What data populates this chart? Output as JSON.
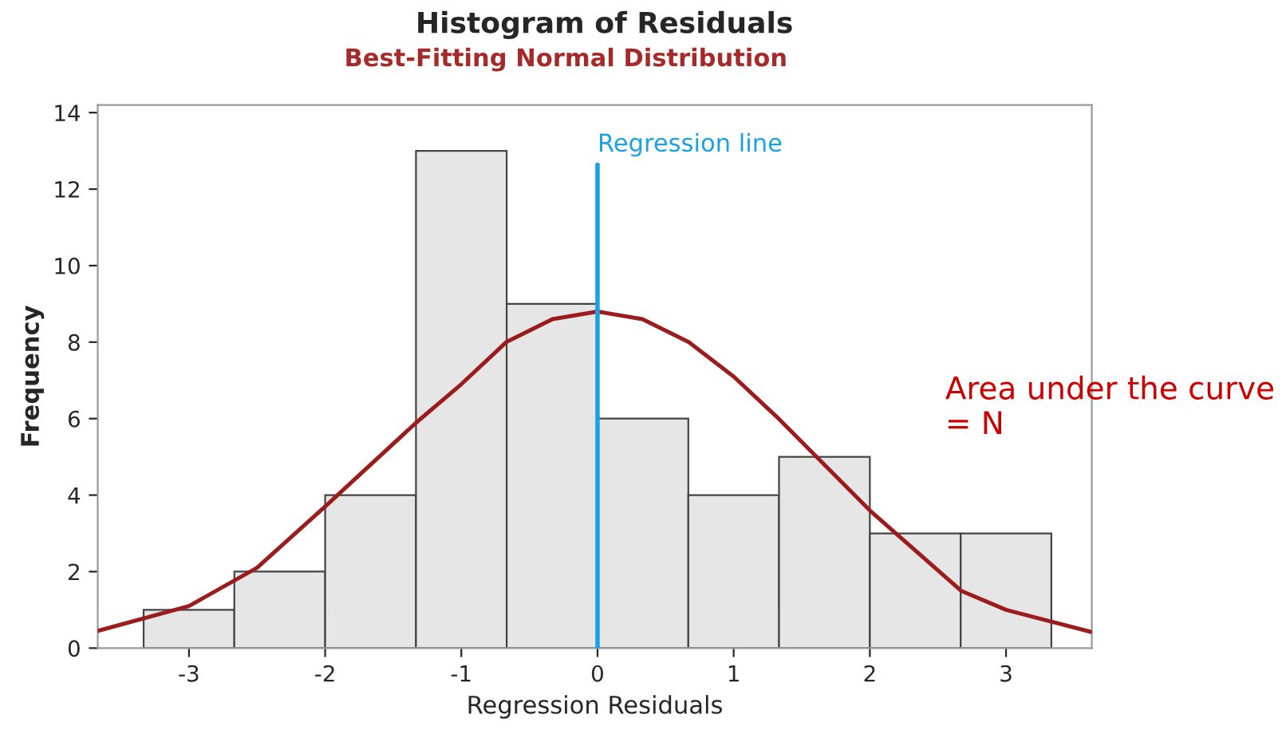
{
  "chart_data": [
    {
      "type": "histogram",
      "title": "Histogram of Residuals",
      "subtitle": "Best-Fitting Normal Distribution",
      "xlabel": "Regression Residuals",
      "ylabel": "Frequency",
      "bins": [
        -3.333,
        -2.667,
        -2,
        -1.333,
        -0.667,
        0,
        0.667,
        1.333,
        2,
        2.667,
        3.333
      ],
      "values": [
        1,
        2,
        4,
        13,
        9,
        6,
        4,
        5,
        3,
        3
      ],
      "color": "#e6e6e6",
      "series": [
        {
          "type": "line",
          "color": "#9b1c1c",
          "x": [
            -3.67,
            -3.0,
            -2.5,
            -2.0,
            -1.33,
            -1.0,
            -0.67,
            -0.33,
            0,
            0.33,
            0.67,
            1.0,
            1.33,
            2.0,
            2.67,
            3.0,
            3.63
          ],
          "values": [
            0.45,
            1.1,
            2.1,
            3.7,
            5.9,
            6.9,
            8.0,
            8.6,
            8.8,
            8.6,
            8.0,
            7.1,
            6.0,
            3.6,
            1.5,
            1.0,
            0.42
          ]
        }
      ],
      "ref_lines": [
        {
          "axis": "x",
          "value": 0,
          "label": "Regression line",
          "color": "#1ba1e2"
        }
      ],
      "annotations": [
        "Area under the curve\n= N"
      ],
      "xlim": [
        -3.67,
        3.63
      ],
      "ylim": [
        0,
        14.2
      ],
      "xticks": [
        -3,
        -2,
        -1,
        0,
        1,
        2,
        3
      ],
      "yticks": [
        0,
        2,
        4,
        6,
        8,
        10,
        12,
        14
      ],
      "grid": false,
      "legend": false
    }
  ]
}
